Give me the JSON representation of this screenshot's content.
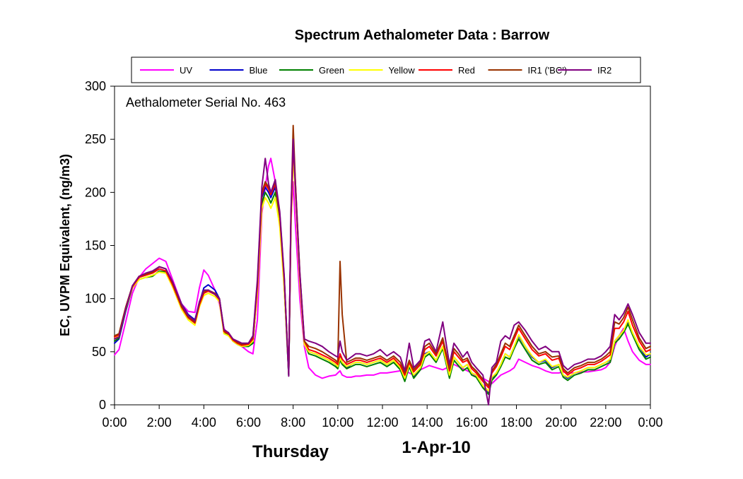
{
  "chart_data": {
    "type": "line",
    "title": "Spectrum Aethalometer Data  :  Barrow",
    "xlabel": "",
    "ylabel": "EC, UVPM Equivalent, (ng/m3)",
    "annotation": "Aethalometer  Serial No. 463",
    "bottom_labels": {
      "day": "Thursday",
      "date": "1-Apr-10"
    },
    "xlim": [
      0,
      24
    ],
    "ylim": [
      0,
      300
    ],
    "x_ticks": [
      0,
      2,
      4,
      6,
      8,
      10,
      12,
      14,
      16,
      18,
      20,
      22,
      24
    ],
    "x_tick_labels": [
      "0:00",
      "2:00",
      "4:00",
      "6:00",
      "8:00",
      "10:00",
      "12:00",
      "14:00",
      "16:00",
      "18:00",
      "20:00",
      "22:00",
      "0:00"
    ],
    "y_ticks": [
      0,
      50,
      100,
      150,
      200,
      250,
      300
    ],
    "y_tick_labels": [
      "0",
      "50",
      "100",
      "150",
      "200",
      "250",
      "300"
    ],
    "legend_position": "top",
    "x": [
      0,
      0.2,
      0.5,
      0.8,
      1.1,
      1.4,
      1.7,
      2.0,
      2.3,
      2.6,
      3.0,
      3.3,
      3.6,
      3.8,
      4.0,
      4.2,
      4.5,
      4.7,
      4.9,
      5.1,
      5.3,
      5.5,
      5.7,
      6.0,
      6.2,
      6.4,
      6.6,
      6.75,
      6.9,
      7.0,
      7.2,
      7.4,
      7.6,
      7.8,
      7.9,
      8.0,
      8.1,
      8.3,
      8.5,
      8.7,
      9.0,
      9.3,
      9.6,
      9.9,
      10.0,
      10.1,
      10.2,
      10.4,
      10.6,
      10.8,
      11.0,
      11.3,
      11.6,
      11.9,
      12.2,
      12.5,
      12.8,
      13.0,
      13.2,
      13.4,
      13.7,
      13.9,
      14.1,
      14.4,
      14.7,
      15.0,
      15.2,
      15.4,
      15.6,
      15.8,
      16.0,
      16.2,
      16.5,
      16.75,
      16.9,
      17.1,
      17.3,
      17.5,
      17.7,
      17.9,
      18.1,
      18.4,
      18.7,
      19.0,
      19.3,
      19.6,
      19.9,
      20.1,
      20.3,
      20.6,
      20.9,
      21.2,
      21.5,
      21.8,
      22.0,
      22.2,
      22.4,
      22.6,
      22.8,
      23.0,
      23.2,
      23.5,
      23.8,
      24.0
    ],
    "series": [
      {
        "name": "UV",
        "color": "#ff00ff",
        "values": [
          47,
          52,
          78,
          105,
          120,
          128,
          133,
          138,
          135,
          118,
          95,
          88,
          87,
          110,
          127,
          122,
          108,
          95,
          72,
          65,
          62,
          58,
          55,
          50,
          48,
          80,
          180,
          205,
          225,
          232,
          210,
          170,
          120,
          30,
          175,
          210,
          170,
          100,
          55,
          35,
          28,
          25,
          27,
          28,
          30,
          32,
          28,
          26,
          26,
          27,
          27,
          28,
          28,
          30,
          30,
          31,
          32,
          32,
          30,
          28,
          33,
          35,
          37,
          35,
          33,
          36,
          38,
          36,
          34,
          32,
          30,
          27,
          25,
          22,
          20,
          24,
          28,
          30,
          32,
          35,
          43,
          40,
          37,
          35,
          32,
          30,
          30,
          31,
          30,
          30,
          31,
          31,
          32,
          33,
          35,
          40,
          55,
          65,
          72,
          60,
          50,
          42,
          38,
          38
        ]
      },
      {
        "name": "Blue",
        "color": "#0000cc",
        "values": [
          58,
          62,
          88,
          110,
          120,
          123,
          125,
          130,
          128,
          114,
          95,
          85,
          80,
          96,
          110,
          113,
          108,
          100,
          70,
          67,
          60,
          57,
          55,
          55,
          58,
          110,
          195,
          205,
          200,
          195,
          205,
          175,
          115,
          28,
          170,
          240,
          205,
          120,
          60,
          50,
          48,
          45,
          42,
          38,
          35,
          45,
          40,
          35,
          38,
          40,
          40,
          38,
          40,
          42,
          38,
          42,
          35,
          25,
          38,
          27,
          35,
          48,
          50,
          42,
          55,
          28,
          45,
          40,
          35,
          38,
          30,
          28,
          18,
          12,
          25,
          30,
          38,
          48,
          45,
          55,
          65,
          55,
          45,
          40,
          42,
          35,
          38,
          28,
          25,
          30,
          32,
          35,
          35,
          38,
          40,
          42,
          60,
          65,
          70,
          78,
          68,
          55,
          45,
          48
        ]
      },
      {
        "name": "Green",
        "color": "#008000",
        "values": [
          60,
          63,
          89,
          110,
          118,
          120,
          121,
          126,
          125,
          112,
          92,
          82,
          77,
          93,
          105,
          108,
          104,
          98,
          68,
          66,
          60,
          57,
          55,
          55,
          58,
          108,
          190,
          200,
          195,
          190,
          200,
          172,
          112,
          28,
          168,
          238,
          203,
          118,
          58,
          48,
          46,
          43,
          40,
          36,
          34,
          42,
          38,
          34,
          36,
          38,
          38,
          36,
          38,
          40,
          36,
          40,
          33,
          22,
          36,
          25,
          33,
          45,
          48,
          40,
          53,
          25,
          42,
          37,
          32,
          35,
          28,
          26,
          16,
          10,
          23,
          28,
          36,
          45,
          43,
          53,
          62,
          52,
          42,
          38,
          40,
          33,
          36,
          26,
          23,
          28,
          30,
          33,
          33,
          36,
          38,
          40,
          58,
          62,
          68,
          76,
          66,
          52,
          43,
          45
        ]
      },
      {
        "name": "Yellow",
        "color": "#ffff00",
        "values": [
          62,
          65,
          90,
          110,
          118,
          120,
          122,
          125,
          124,
          111,
          90,
          80,
          75,
          92,
          103,
          105,
          102,
          97,
          67,
          65,
          60,
          57,
          55,
          56,
          60,
          105,
          185,
          195,
          190,
          185,
          195,
          168,
          110,
          30,
          165,
          235,
          200,
          115,
          57,
          50,
          48,
          45,
          42,
          38,
          36,
          44,
          40,
          36,
          38,
          40,
          40,
          38,
          40,
          42,
          38,
          42,
          35,
          25,
          38,
          28,
          35,
          47,
          50,
          42,
          55,
          28,
          45,
          40,
          35,
          38,
          30,
          28,
          18,
          13,
          26,
          30,
          38,
          48,
          45,
          55,
          66,
          55,
          46,
          40,
          43,
          36,
          38,
          28,
          26,
          30,
          32,
          35,
          35,
          38,
          40,
          43,
          60,
          65,
          70,
          80,
          68,
          55,
          47,
          48
        ]
      },
      {
        "name": "Red",
        "color": "#ff0000",
        "values": [
          64,
          66,
          91,
          111,
          120,
          122,
          124,
          128,
          126,
          113,
          92,
          82,
          77,
          94,
          105,
          107,
          104,
          99,
          69,
          67,
          61,
          58,
          56,
          57,
          62,
          112,
          198,
          208,
          203,
          198,
          208,
          178,
          118,
          30,
          172,
          245,
          210,
          122,
          60,
          52,
          50,
          47,
          44,
          40,
          38,
          48,
          43,
          38,
          40,
          42,
          42,
          40,
          42,
          44,
          40,
          44,
          37,
          28,
          40,
          31,
          38,
          52,
          55,
          46,
          60,
          32,
          50,
          45,
          40,
          42,
          34,
          30,
          22,
          16,
          30,
          36,
          45,
          55,
          52,
          62,
          72,
          62,
          52,
          46,
          48,
          42,
          44,
          32,
          28,
          33,
          35,
          38,
          38,
          41,
          44,
          47,
          72,
          72,
          78,
          88,
          75,
          60,
          50,
          52
        ]
      },
      {
        "name": "IR1 ('BC')",
        "color": "#993300",
        "values": [
          65,
          67,
          92,
          112,
          121,
          123,
          125,
          130,
          128,
          115,
          93,
          83,
          78,
          96,
          107,
          108,
          105,
          100,
          70,
          68,
          62,
          59,
          57,
          58,
          64,
          115,
          200,
          210,
          205,
          200,
          210,
          180,
          120,
          30,
          175,
          263,
          210,
          125,
          60,
          55,
          53,
          50,
          46,
          42,
          40,
          135,
          85,
          40,
          42,
          44,
          44,
          42,
          44,
          46,
          42,
          46,
          40,
          30,
          42,
          33,
          40,
          55,
          58,
          48,
          63,
          34,
          53,
          48,
          42,
          44,
          36,
          32,
          24,
          18,
          32,
          38,
          48,
          58,
          55,
          65,
          75,
          65,
          55,
          48,
          50,
          45,
          46,
          34,
          30,
          35,
          37,
          40,
          40,
          43,
          46,
          50,
          78,
          76,
          82,
          92,
          80,
          63,
          53,
          55
        ]
      },
      {
        "name": "IR2",
        "color": "#800080",
        "values": [
          62,
          64,
          90,
          112,
          121,
          124,
          126,
          130,
          128,
          116,
          95,
          84,
          79,
          97,
          108,
          108,
          104,
          100,
          71,
          68,
          62,
          60,
          58,
          58,
          65,
          118,
          205,
          232,
          208,
          200,
          212,
          182,
          122,
          27,
          180,
          250,
          205,
          124,
          62,
          60,
          58,
          55,
          50,
          46,
          45,
          60,
          50,
          42,
          45,
          48,
          48,
          46,
          48,
          52,
          46,
          50,
          45,
          32,
          58,
          35,
          42,
          60,
          62,
          50,
          78,
          38,
          58,
          52,
          45,
          50,
          40,
          35,
          28,
          0,
          35,
          40,
          60,
          65,
          62,
          75,
          78,
          70,
          60,
          52,
          55,
          50,
          50,
          37,
          33,
          38,
          40,
          43,
          43,
          46,
          50,
          55,
          85,
          80,
          86,
          95,
          85,
          68,
          58,
          58
        ]
      }
    ]
  }
}
